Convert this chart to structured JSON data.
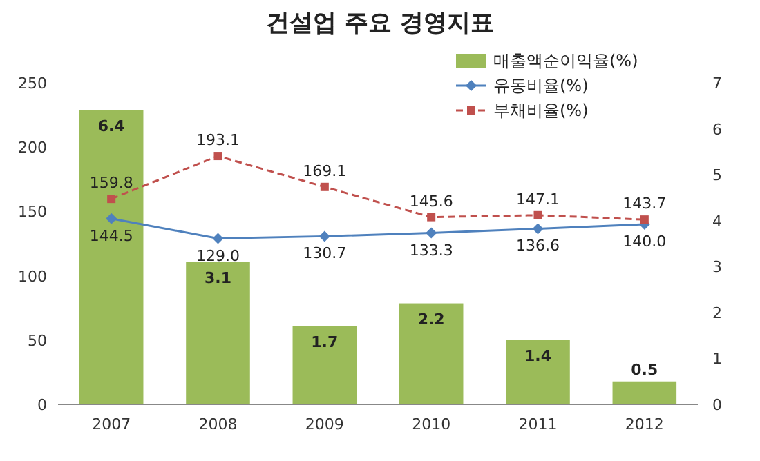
{
  "chart_data": {
    "type": "bar",
    "title": "건설업 주요 경영지표",
    "categories": [
      "2007",
      "2008",
      "2009",
      "2010",
      "2011",
      "2012"
    ],
    "series": [
      {
        "name": "매출액순이익율(%)",
        "axis": "y2",
        "color": "#9bbb59",
        "values": [
          6.4,
          3.1,
          1.7,
          2.2,
          1.4,
          0.5
        ]
      },
      {
        "name": "유동비율(%)",
        "type": "line",
        "color": "#4f81bd",
        "marker": "diamond",
        "line_style": "solid",
        "values": [
          144.5,
          129.0,
          130.7,
          133.3,
          136.6,
          140.0
        ],
        "value_labels": [
          "144.5",
          "129.0",
          "130.7",
          "133.3",
          "136.6",
          "140.0"
        ]
      },
      {
        "name": "부채비율(%)",
        "type": "line",
        "color": "#c0504d",
        "marker": "square",
        "line_style": "dashed",
        "values": [
          159.8,
          193.1,
          169.1,
          145.6,
          147.1,
          143.7
        ],
        "value_labels": [
          "159.8",
          "193.1",
          "169.1",
          "145.6",
          "147.1",
          "143.7"
        ]
      }
    ],
    "ylim": [
      0,
      250
    ],
    "yticks": [
      0,
      50,
      100,
      150,
      200,
      250
    ],
    "y2lim": [
      0,
      7
    ],
    "y2ticks": [
      0,
      1,
      2,
      3,
      4,
      5,
      6,
      7
    ],
    "data_labels": true,
    "legend": "top right",
    "grid": false
  }
}
